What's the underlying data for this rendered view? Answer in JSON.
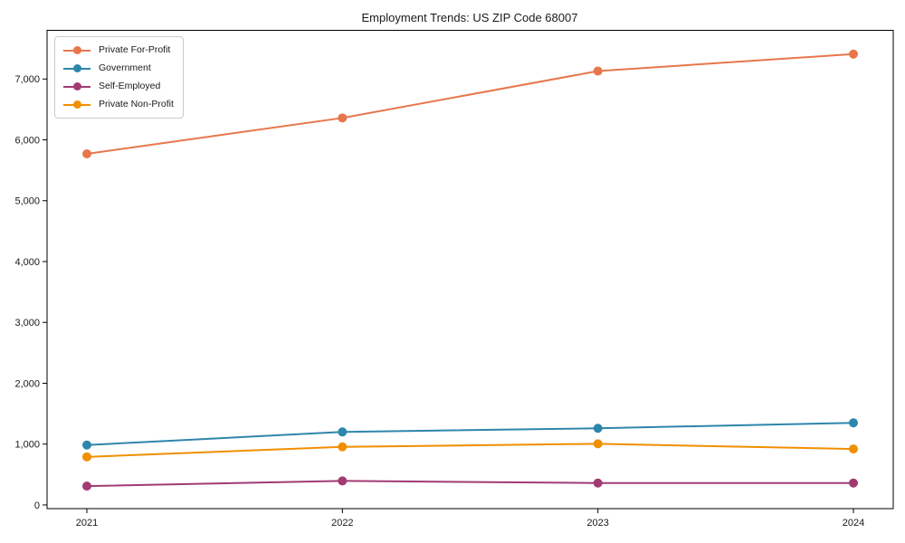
{
  "figure": {
    "title": "Employment Trends: US ZIP Code 68007"
  },
  "chart_data": {
    "type": "line",
    "title": "Employment Trends: US ZIP Code 68007",
    "xlabel": "",
    "ylabel": "",
    "x": [
      2021,
      2022,
      2023,
      2024
    ],
    "x_tick_labels": [
      "2021",
      "2022",
      "2023",
      "2024"
    ],
    "series": [
      {
        "name": "Private For-Profit",
        "color": "#E8764B",
        "values": [
          5770,
          6360,
          7130,
          7410
        ]
      },
      {
        "name": "Government",
        "color": "#2E86AB",
        "values": [
          985,
          1200,
          1260,
          1350
        ]
      },
      {
        "name": "Self-Employed",
        "color": "#A23B72",
        "values": [
          310,
          395,
          360,
          360
        ]
      },
      {
        "name": "Private Non-Profit",
        "color": "#F18F01",
        "values": [
          790,
          955,
          1005,
          920
        ]
      }
    ],
    "yticks": [
      0,
      1000,
      2000,
      3000,
      4000,
      5000,
      6000,
      7000
    ],
    "y_tick_labels": [
      "0",
      "1,000",
      "2,000",
      "3,000",
      "4,000",
      "5,000",
      "6,000",
      "7,000"
    ],
    "ylim": [
      -60,
      7800
    ],
    "grid": false,
    "legend_position": "upper left",
    "marker": "circle",
    "line_width": 2,
    "marker_radius": 5
  }
}
